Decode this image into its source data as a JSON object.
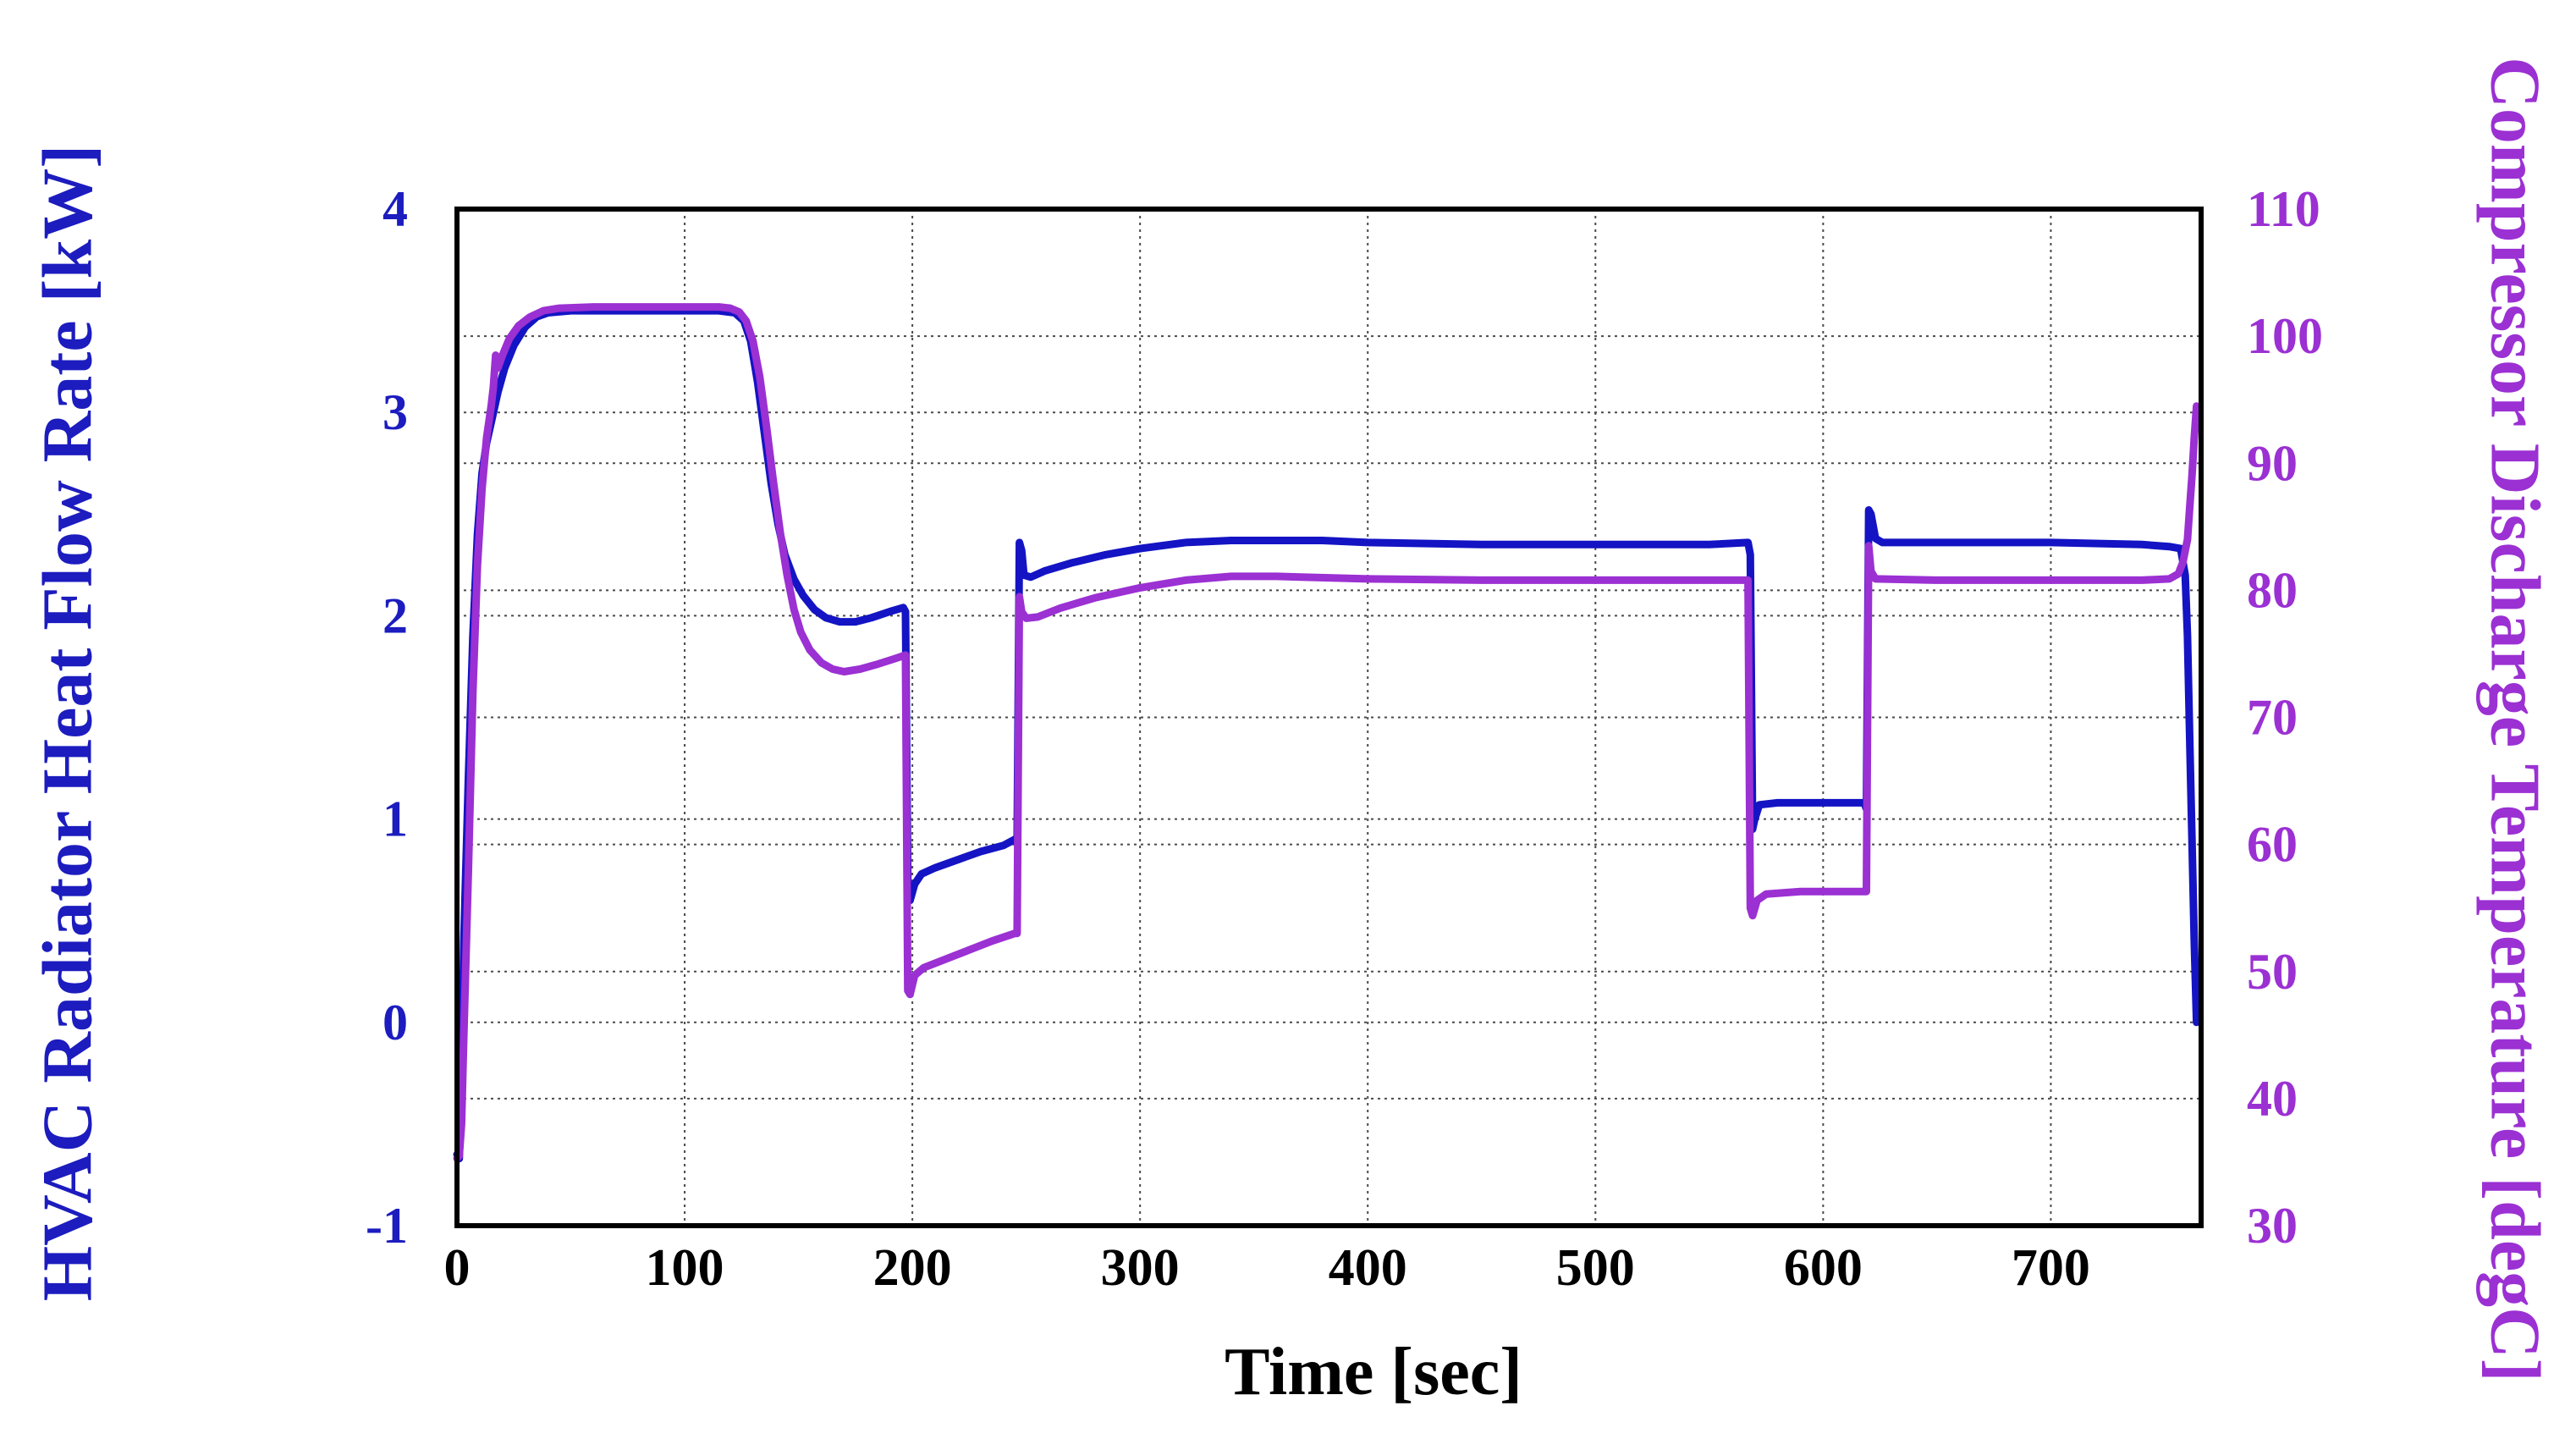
{
  "chart_data": {
    "type": "line",
    "xlabel": "Time [sec]",
    "ylabel": "HVAC Radiator Heat Flow Rate [kW]",
    "y2label": "Compressor Discharge Temperature [degC]",
    "xlim": [
      0,
      766
    ],
    "ylim": [
      -1,
      4
    ],
    "y2lim": [
      30,
      110
    ],
    "xticks": [
      0,
      100,
      200,
      300,
      400,
      500,
      600,
      700
    ],
    "yticks": [
      -1,
      0,
      1,
      2,
      3,
      4
    ],
    "y2ticks": [
      30,
      40,
      50,
      60,
      70,
      80,
      90,
      100,
      110
    ],
    "grid": true,
    "colors": {
      "left_axis": "#1c1cbf",
      "right_axis": "#9b30d3",
      "x_axis": "#000000"
    },
    "series": [
      {
        "axis": "left",
        "color": "#1414c4",
        "points": [
          [
            0,
            -0.65
          ],
          [
            1,
            -0.67
          ],
          [
            2,
            -0.3
          ],
          [
            3,
            0.4
          ],
          [
            5,
            1.2
          ],
          [
            7,
            1.9
          ],
          [
            9,
            2.4
          ],
          [
            11,
            2.7
          ],
          [
            13,
            2.85
          ],
          [
            15,
            2.95
          ],
          [
            18,
            3.1
          ],
          [
            21,
            3.22
          ],
          [
            25,
            3.33
          ],
          [
            30,
            3.42
          ],
          [
            35,
            3.47
          ],
          [
            40,
            3.49
          ],
          [
            50,
            3.5
          ],
          [
            60,
            3.5
          ],
          [
            80,
            3.5
          ],
          [
            100,
            3.5
          ],
          [
            115,
            3.5
          ],
          [
            122,
            3.49
          ],
          [
            126,
            3.45
          ],
          [
            129,
            3.35
          ],
          [
            132,
            3.15
          ],
          [
            135,
            2.9
          ],
          [
            138,
            2.65
          ],
          [
            141,
            2.45
          ],
          [
            144,
            2.3
          ],
          [
            148,
            2.18
          ],
          [
            152,
            2.1
          ],
          [
            157,
            2.03
          ],
          [
            162,
            1.99
          ],
          [
            168,
            1.97
          ],
          [
            175,
            1.97
          ],
          [
            182,
            1.99
          ],
          [
            190,
            2.02
          ],
          [
            196,
            2.04
          ],
          [
            197,
            2.02
          ],
          [
            198,
            0.7
          ],
          [
            199,
            0.6
          ],
          [
            201,
            0.68
          ],
          [
            204,
            0.73
          ],
          [
            210,
            0.76
          ],
          [
            220,
            0.8
          ],
          [
            230,
            0.84
          ],
          [
            240,
            0.87
          ],
          [
            245,
            0.9
          ],
          [
            246,
            0.88
          ],
          [
            247,
            2.36
          ],
          [
            248,
            2.32
          ],
          [
            249,
            2.2
          ],
          [
            252,
            2.19
          ],
          [
            258,
            2.22
          ],
          [
            270,
            2.26
          ],
          [
            285,
            2.3
          ],
          [
            300,
            2.33
          ],
          [
            320,
            2.36
          ],
          [
            340,
            2.37
          ],
          [
            360,
            2.37
          ],
          [
            380,
            2.37
          ],
          [
            400,
            2.36
          ],
          [
            450,
            2.35
          ],
          [
            500,
            2.35
          ],
          [
            550,
            2.35
          ],
          [
            567,
            2.36
          ],
          [
            568,
            2.3
          ],
          [
            569,
            0.95
          ],
          [
            570,
            1.0
          ],
          [
            572,
            1.07
          ],
          [
            580,
            1.08
          ],
          [
            600,
            1.08
          ],
          [
            618,
            1.08
          ],
          [
            619,
            1.05
          ],
          [
            620,
            2.52
          ],
          [
            621,
            2.5
          ],
          [
            623,
            2.38
          ],
          [
            626,
            2.36
          ],
          [
            650,
            2.36
          ],
          [
            700,
            2.36
          ],
          [
            740,
            2.35
          ],
          [
            752,
            2.34
          ],
          [
            757,
            2.33
          ],
          [
            759,
            2.2
          ],
          [
            760,
            1.9
          ],
          [
            761,
            1.4
          ],
          [
            762,
            0.9
          ],
          [
            763,
            0.4
          ],
          [
            764,
            0.0
          ]
        ]
      },
      {
        "axis": "right",
        "color": "#9b30d3",
        "points": [
          [
            0,
            35.3
          ],
          [
            1,
            35.5
          ],
          [
            2,
            38
          ],
          [
            3,
            45
          ],
          [
            5,
            58
          ],
          [
            7,
            72
          ],
          [
            9,
            82
          ],
          [
            11,
            88
          ],
          [
            13,
            92
          ],
          [
            15,
            94.5
          ],
          [
            16,
            96
          ],
          [
            17,
            98.5
          ],
          [
            18,
            97.5
          ],
          [
            20,
            98.5
          ],
          [
            23,
            99.8
          ],
          [
            27,
            100.8
          ],
          [
            32,
            101.5
          ],
          [
            38,
            102
          ],
          [
            45,
            102.2
          ],
          [
            60,
            102.3
          ],
          [
            80,
            102.3
          ],
          [
            100,
            102.3
          ],
          [
            115,
            102.3
          ],
          [
            120,
            102.2
          ],
          [
            124,
            101.9
          ],
          [
            127,
            101.2
          ],
          [
            130,
            99.6
          ],
          [
            133,
            96.8
          ],
          [
            136,
            92.8
          ],
          [
            139,
            88.5
          ],
          [
            142,
            84.5
          ],
          [
            145,
            81.2
          ],
          [
            148,
            78.5
          ],
          [
            151,
            76.7
          ],
          [
            155,
            75.3
          ],
          [
            160,
            74.3
          ],
          [
            165,
            73.8
          ],
          [
            170,
            73.6
          ],
          [
            177,
            73.8
          ],
          [
            185,
            74.2
          ],
          [
            192,
            74.6
          ],
          [
            197,
            74.9
          ],
          [
            198,
            48.5
          ],
          [
            199,
            48.2
          ],
          [
            201,
            49.7
          ],
          [
            205,
            50.3
          ],
          [
            215,
            51
          ],
          [
            225,
            51.7
          ],
          [
            235,
            52.4
          ],
          [
            245,
            53
          ],
          [
            246,
            53
          ],
          [
            247,
            79.5
          ],
          [
            248,
            78.3
          ],
          [
            250,
            77.8
          ],
          [
            255,
            77.9
          ],
          [
            265,
            78.6
          ],
          [
            280,
            79.4
          ],
          [
            300,
            80.2
          ],
          [
            320,
            80.8
          ],
          [
            340,
            81.1
          ],
          [
            360,
            81.1
          ],
          [
            400,
            80.9
          ],
          [
            450,
            80.8
          ],
          [
            500,
            80.8
          ],
          [
            567,
            80.8
          ],
          [
            568,
            55
          ],
          [
            569,
            54.4
          ],
          [
            571,
            55.6
          ],
          [
            575,
            56.1
          ],
          [
            590,
            56.3
          ],
          [
            618,
            56.3
          ],
          [
            619,
            56.3
          ],
          [
            620,
            83.5
          ],
          [
            621,
            81.5
          ],
          [
            623,
            80.9
          ],
          [
            650,
            80.8
          ],
          [
            700,
            80.8
          ],
          [
            740,
            80.8
          ],
          [
            752,
            80.9
          ],
          [
            756,
            81.3
          ],
          [
            758,
            82.2
          ],
          [
            760,
            84
          ],
          [
            761,
            86.5
          ],
          [
            762,
            89
          ],
          [
            763,
            92
          ],
          [
            764,
            94.5
          ]
        ]
      }
    ]
  }
}
